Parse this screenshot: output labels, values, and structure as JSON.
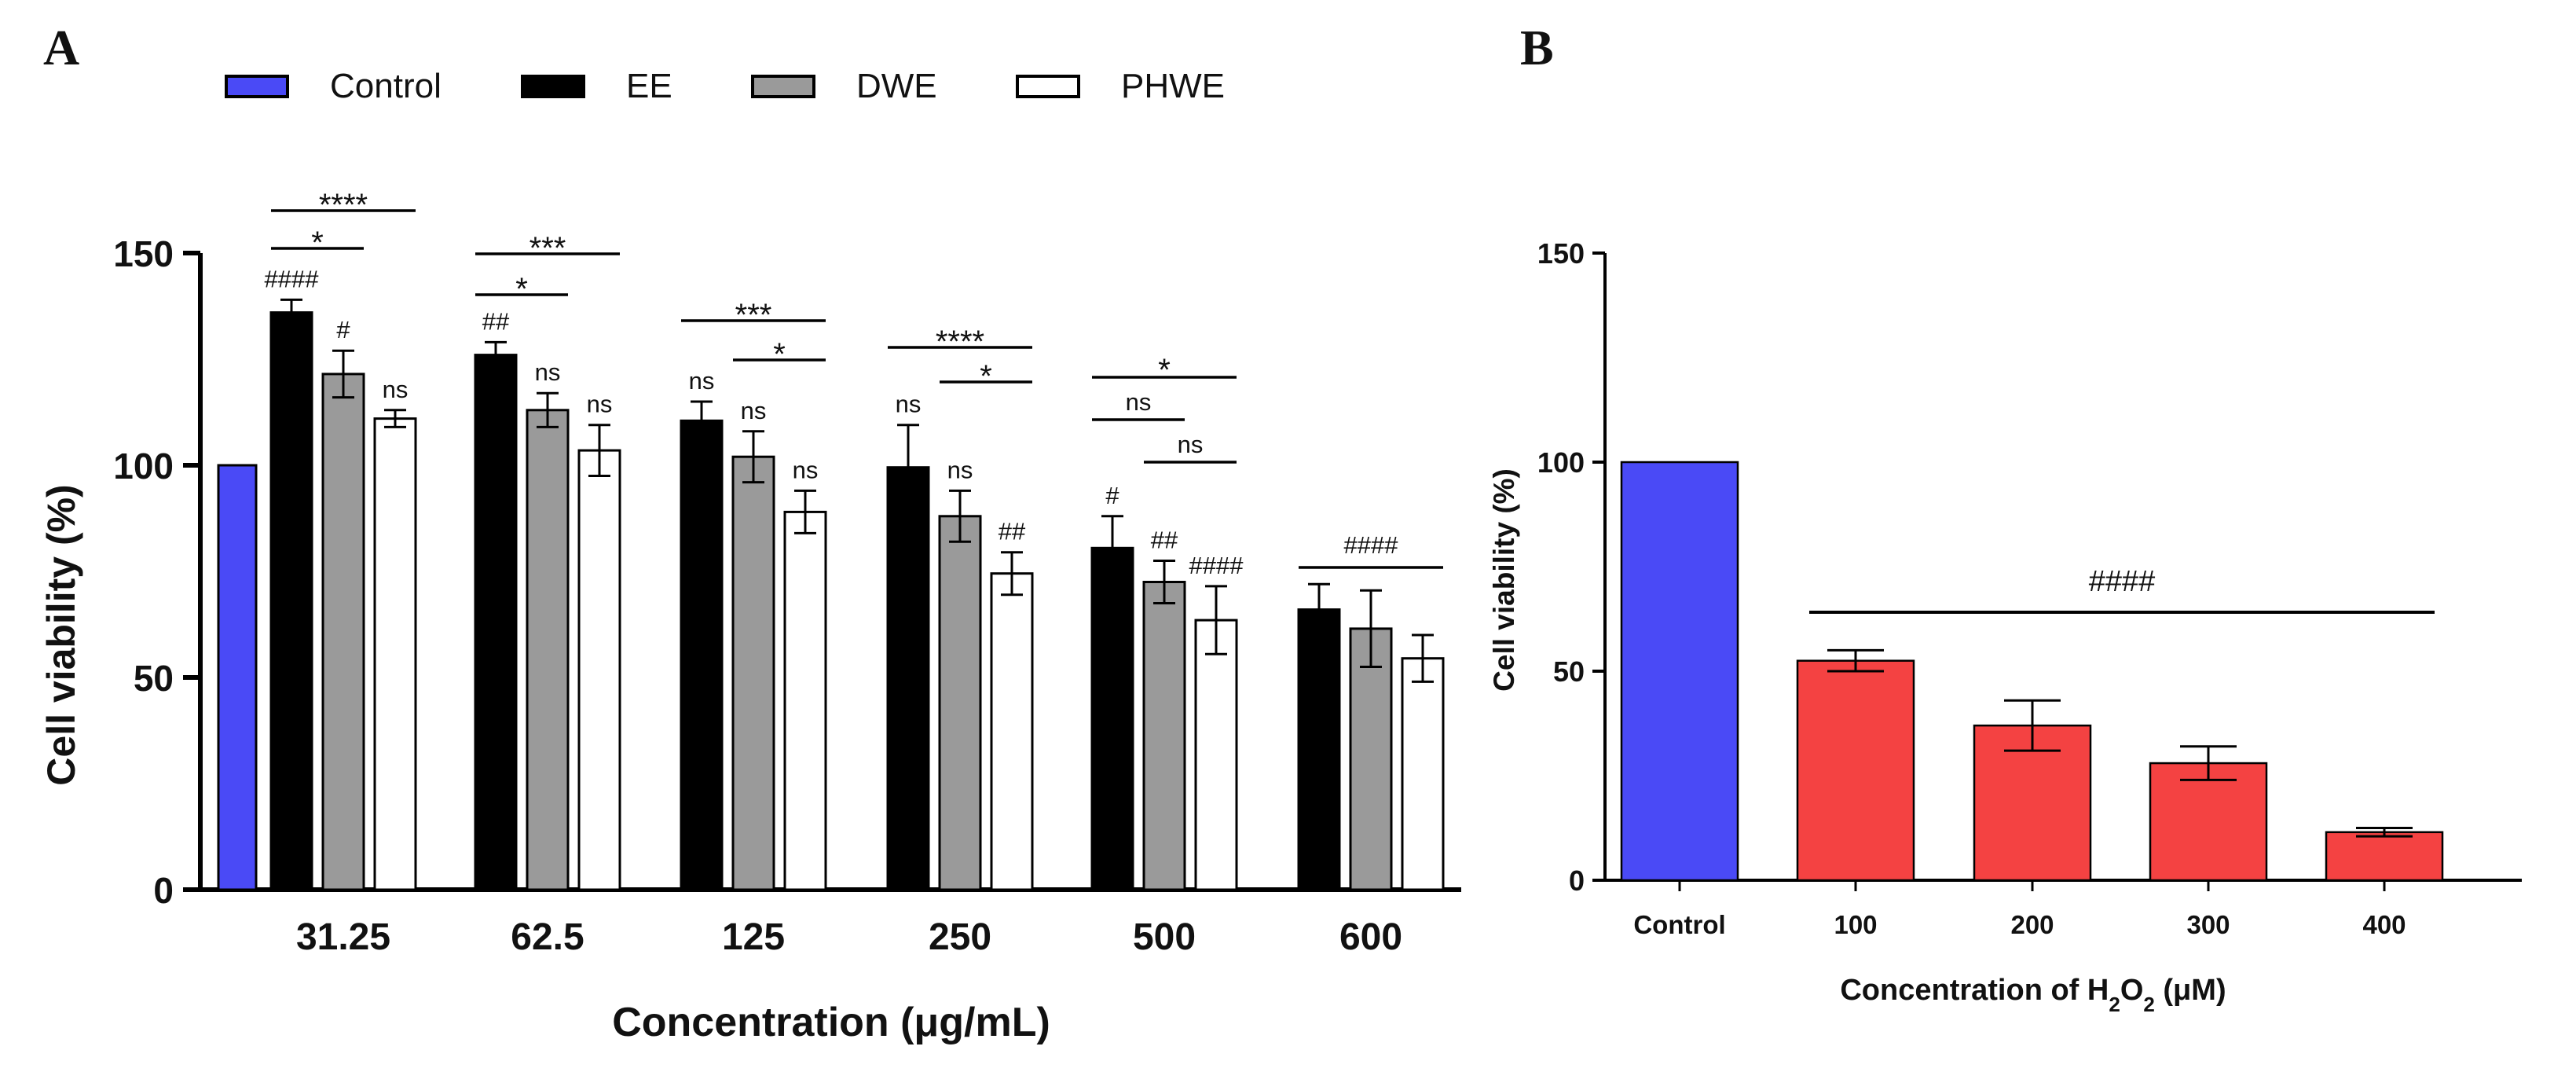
{
  "panel_labels": {
    "a": "A",
    "b": "B"
  },
  "chart_data": [
    {
      "panel": "A",
      "type": "bar",
      "title": "",
      "xlabel": "Concentration (μg/mL)",
      "ylabel": "Cell viability (%)",
      "ylim": [
        0,
        150
      ],
      "yticks": [
        0,
        50,
        100,
        150
      ],
      "legend_position": "top",
      "legend": [
        {
          "name": "Control",
          "color": "#4a4af6"
        },
        {
          "name": "EE",
          "color": "#000000"
        },
        {
          "name": "DWE",
          "color": "#9a9a9a"
        },
        {
          "name": "PHWE",
          "color": "#ffffff"
        }
      ],
      "control": {
        "name": "Control",
        "value": 100,
        "color": "#4a4af6"
      },
      "categories": [
        "31.25",
        "62.5",
        "125",
        "250",
        "500",
        "600"
      ],
      "series": [
        {
          "name": "EE",
          "color": "#000000",
          "values": [
            136,
            126,
            110.5,
            99.5,
            80.5,
            66
          ],
          "errors": [
            3,
            3,
            4.5,
            10,
            7.5,
            6
          ],
          "labels": [
            "####",
            "##",
            "ns",
            "ns",
            "#",
            ""
          ]
        },
        {
          "name": "DWE",
          "color": "#9a9a9a",
          "values": [
            121.5,
            113,
            102,
            88,
            72.5,
            61.5
          ],
          "errors": [
            5.5,
            4,
            6,
            6,
            5,
            9
          ],
          "labels": [
            "#",
            "ns",
            "ns",
            "ns",
            "##",
            ""
          ]
        },
        {
          "name": "PHWE",
          "color": "#ffffff",
          "values": [
            111,
            103.5,
            89,
            74.5,
            63.5,
            54.5
          ],
          "errors": [
            2,
            6,
            5,
            5,
            8,
            5.5
          ],
          "labels": [
            "ns",
            "ns",
            "ns",
            "##",
            "####",
            ""
          ]
        }
      ],
      "comparisons": [
        {
          "category": 0,
          "from": "EE",
          "to": "PHWE",
          "label": "****"
        },
        {
          "category": 0,
          "from": "EE",
          "to": "DWE",
          "label": "*"
        },
        {
          "category": 1,
          "from": "EE",
          "to": "PHWE",
          "label": "***"
        },
        {
          "category": 1,
          "from": "EE",
          "to": "DWE",
          "label": "*"
        },
        {
          "category": 2,
          "from": "EE",
          "to": "PHWE",
          "label": "***"
        },
        {
          "category": 2,
          "from": "DWE",
          "to": "PHWE",
          "label": "*"
        },
        {
          "category": 3,
          "from": "EE",
          "to": "PHWE",
          "label": "****"
        },
        {
          "category": 3,
          "from": "DWE",
          "to": "PHWE",
          "label": "*"
        },
        {
          "category": 4,
          "from": "EE",
          "to": "PHWE",
          "label": "*"
        },
        {
          "category": 4,
          "from": "EE",
          "to": "DWE",
          "label": "ns"
        },
        {
          "category": 4,
          "from": "DWE",
          "to": "PHWE",
          "label": "ns"
        },
        {
          "category": 5,
          "from": "EE",
          "to": "PHWE",
          "label": "####"
        }
      ]
    },
    {
      "panel": "B",
      "type": "bar",
      "title": "",
      "xlabel_parts": [
        "Concentration of H",
        "2",
        "O",
        "2",
        " (μM)"
      ],
      "ylabel": "Cell viability (%)",
      "ylim": [
        0,
        150
      ],
      "yticks": [
        0,
        50,
        100,
        150
      ],
      "categories": [
        "Control",
        "100",
        "200",
        "300",
        "400"
      ],
      "values": [
        100,
        52.5,
        37,
        28,
        11.5
      ],
      "errors": [
        0,
        2.5,
        6,
        4,
        1
      ],
      "colors": [
        "#4a4af6",
        "#f44242",
        "#f44242",
        "#f44242",
        "#f44242"
      ],
      "group_annotation": {
        "from": 1,
        "to": 4,
        "label": "####"
      }
    }
  ]
}
